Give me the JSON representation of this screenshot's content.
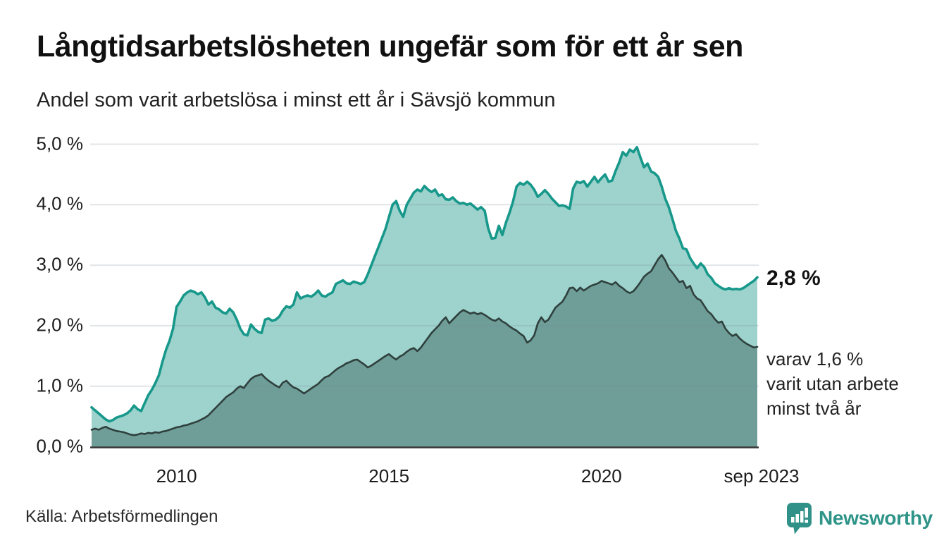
{
  "header": {
    "title": "Långtidsarbetslösheten ungefär som för ett år sen",
    "subtitle": "Andel som varit arbetslösa i minst ett år i Sävsjö kommun"
  },
  "annotations": {
    "end_value_label": "2,8 %",
    "secondary_label_lines": [
      "varav 1,6 %",
      "varit utan arbete",
      "minst två år"
    ]
  },
  "footer": {
    "source": "Källa: Arbetsförmedlingen",
    "brand": "Newsworthy"
  },
  "colors": {
    "primary_line": "#17988a",
    "primary_fill": "#9ed3cd",
    "secondary_line": "#2f403d",
    "secondary_fill": "#6f9e99",
    "gridline": "rgba(125,135,150,0.22)",
    "axis_line": "#373737",
    "brand_teal": "#2e9488"
  },
  "chart_data": {
    "type": "area",
    "title": "Långtidsarbetslösheten ungefär som för ett år sen",
    "subtitle": "Andel som varit arbetslösa i minst ett år i Sävsjö kommun",
    "unit": "%",
    "x_start": "2008-01",
    "x_end": "2023-09",
    "frequency": "monthly",
    "ylim": [
      0,
      5
    ],
    "y_ticks": [
      0,
      1,
      2,
      3,
      4,
      5
    ],
    "y_tick_labels": [
      "0,0 %",
      "1,0 %",
      "2,0 %",
      "3,0 %",
      "4,0 %",
      "5,0 %"
    ],
    "x_ticks": [
      {
        "label": "2010",
        "index": 24
      },
      {
        "label": "2015",
        "index": 84
      },
      {
        "label": "2020",
        "index": 144
      },
      {
        "label": "sep 2023",
        "index": 188
      }
    ],
    "end_labels": {
      "primary": "2,8 %",
      "secondary": "varav 1,6 % varit utan arbete minst två år"
    },
    "series": [
      {
        "name": "Arbetslösa minst ett år",
        "end_value": 2.8,
        "values": [
          0.65,
          0.6,
          0.55,
          0.5,
          0.45,
          0.42,
          0.44,
          0.48,
          0.5,
          0.52,
          0.55,
          0.6,
          0.68,
          0.62,
          0.59,
          0.72,
          0.85,
          0.94,
          1.05,
          1.18,
          1.4,
          1.6,
          1.75,
          1.95,
          2.31,
          2.4,
          2.5,
          2.55,
          2.58,
          2.56,
          2.52,
          2.55,
          2.47,
          2.35,
          2.4,
          2.3,
          2.27,
          2.22,
          2.2,
          2.28,
          2.22,
          2.1,
          1.95,
          1.86,
          1.84,
          2.02,
          1.95,
          1.9,
          1.88,
          2.1,
          2.12,
          2.08,
          2.1,
          2.15,
          2.25,
          2.32,
          2.3,
          2.35,
          2.55,
          2.45,
          2.48,
          2.5,
          2.48,
          2.52,
          2.58,
          2.5,
          2.48,
          2.52,
          2.55,
          2.69,
          2.72,
          2.75,
          2.7,
          2.69,
          2.73,
          2.71,
          2.69,
          2.72,
          2.85,
          3.0,
          3.15,
          3.3,
          3.45,
          3.6,
          3.8,
          4.0,
          4.06,
          3.9,
          3.8,
          4.0,
          4.1,
          4.2,
          4.25,
          4.22,
          4.31,
          4.25,
          4.21,
          4.25,
          4.15,
          4.17,
          4.09,
          4.08,
          4.12,
          4.06,
          4.02,
          4.03,
          4.0,
          4.02,
          3.97,
          3.92,
          3.96,
          3.9,
          3.61,
          3.44,
          3.45,
          3.65,
          3.5,
          3.7,
          3.86,
          4.05,
          4.3,
          4.36,
          4.33,
          4.38,
          4.33,
          4.25,
          4.13,
          4.18,
          4.24,
          4.18,
          4.1,
          4.04,
          3.98,
          3.99,
          3.97,
          3.93,
          4.27,
          4.38,
          4.36,
          4.39,
          4.3,
          4.38,
          4.46,
          4.37,
          4.44,
          4.5,
          4.38,
          4.4,
          4.56,
          4.7,
          4.87,
          4.81,
          4.91,
          4.87,
          4.95,
          4.78,
          4.62,
          4.68,
          4.55,
          4.52,
          4.46,
          4.3,
          4.1,
          3.96,
          3.77,
          3.57,
          3.44,
          3.28,
          3.26,
          3.12,
          3.03,
          2.95,
          3.03,
          2.97,
          2.85,
          2.79,
          2.7,
          2.66,
          2.62,
          2.6,
          2.62,
          2.6,
          2.61,
          2.6,
          2.62,
          2.66,
          2.7,
          2.74,
          2.8
        ]
      },
      {
        "name": "Arbetslösa minst två år",
        "end_value": 1.6,
        "values": [
          0.28,
          0.3,
          0.28,
          0.31,
          0.33,
          0.3,
          0.28,
          0.26,
          0.25,
          0.24,
          0.22,
          0.2,
          0.19,
          0.2,
          0.22,
          0.21,
          0.23,
          0.22,
          0.24,
          0.23,
          0.25,
          0.26,
          0.28,
          0.3,
          0.32,
          0.33,
          0.35,
          0.36,
          0.38,
          0.4,
          0.42,
          0.45,
          0.48,
          0.52,
          0.58,
          0.64,
          0.7,
          0.76,
          0.82,
          0.86,
          0.9,
          0.96,
          1.0,
          0.97,
          1.05,
          1.12,
          1.16,
          1.18,
          1.2,
          1.14,
          1.09,
          1.05,
          1.01,
          0.98,
          1.06,
          1.09,
          1.03,
          0.98,
          0.96,
          0.92,
          0.88,
          0.92,
          0.96,
          1.0,
          1.04,
          1.1,
          1.15,
          1.17,
          1.22,
          1.27,
          1.31,
          1.34,
          1.38,
          1.4,
          1.43,
          1.44,
          1.4,
          1.36,
          1.31,
          1.34,
          1.38,
          1.42,
          1.46,
          1.5,
          1.53,
          1.48,
          1.44,
          1.49,
          1.52,
          1.57,
          1.61,
          1.63,
          1.58,
          1.64,
          1.72,
          1.8,
          1.88,
          1.94,
          2.0,
          2.08,
          2.14,
          2.04,
          2.1,
          2.16,
          2.22,
          2.26,
          2.23,
          2.2,
          2.22,
          2.19,
          2.21,
          2.18,
          2.14,
          2.1,
          2.08,
          2.12,
          2.07,
          2.04,
          1.99,
          1.95,
          1.92,
          1.87,
          1.83,
          1.72,
          1.76,
          1.84,
          2.04,
          2.14,
          2.06,
          2.1,
          2.2,
          2.3,
          2.35,
          2.4,
          2.5,
          2.62,
          2.63,
          2.57,
          2.63,
          2.58,
          2.62,
          2.66,
          2.68,
          2.7,
          2.74,
          2.72,
          2.7,
          2.68,
          2.72,
          2.66,
          2.62,
          2.57,
          2.54,
          2.57,
          2.64,
          2.72,
          2.81,
          2.86,
          2.9,
          3.0,
          3.1,
          3.17,
          3.08,
          2.95,
          2.88,
          2.8,
          2.72,
          2.74,
          2.62,
          2.66,
          2.52,
          2.45,
          2.42,
          2.33,
          2.24,
          2.19,
          2.11,
          2.05,
          2.07,
          1.95,
          1.88,
          1.83,
          1.86,
          1.79,
          1.74,
          1.7,
          1.67,
          1.64,
          1.65
        ]
      }
    ],
    "legend_position": "none",
    "grid": "horizontal"
  }
}
